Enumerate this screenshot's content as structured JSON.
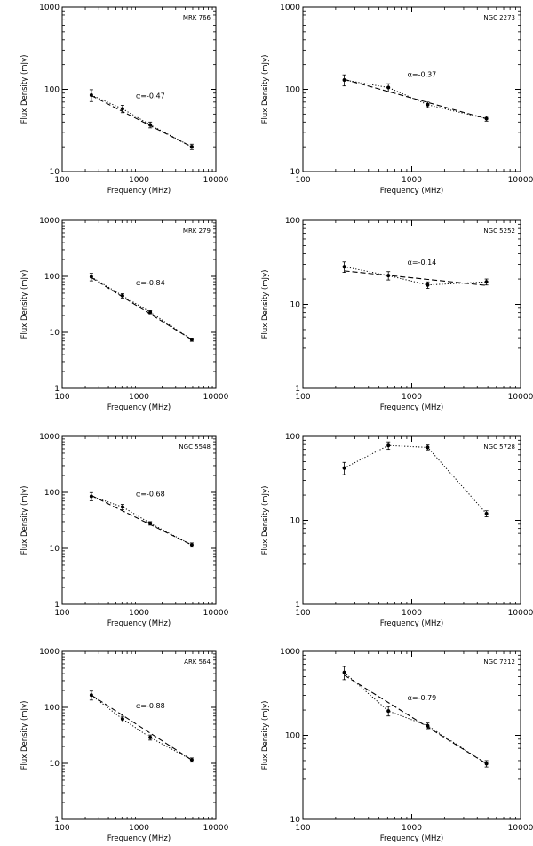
{
  "figure": {
    "x_axis_label": "Frequency (MHz)",
    "y_axis_label": "Flux Density (mJy)"
  },
  "chart_data": [
    {
      "type": "line",
      "object": "MRK 766",
      "alpha_label": "α=-0.47",
      "xlabel": "Frequency (MHz)",
      "ylabel": "Flux Density (mJy)",
      "x_scale": "log",
      "y_scale": "log",
      "xlim": [
        100,
        10000
      ],
      "ylim": [
        10,
        1000
      ],
      "x_ticks": [
        "100",
        "1000",
        "10000"
      ],
      "y_ticks": [
        "10",
        "100",
        "1000"
      ],
      "series": [
        {
          "style": "data-dotted",
          "x": [
            240,
            610,
            1400,
            4860
          ],
          "y": [
            85,
            58,
            37,
            20
          ],
          "err": [
            14,
            6,
            3,
            1.5
          ]
        },
        {
          "style": "fit-dashed",
          "x": [
            240,
            4860
          ],
          "y": [
            84,
            20
          ]
        }
      ]
    },
    {
      "type": "line",
      "object": "NGC 2273",
      "alpha_label": "α=-0.37",
      "xlabel": "Frequency (MHz)",
      "ylabel": "Flux Density (mJy)",
      "x_scale": "log",
      "y_scale": "log",
      "xlim": [
        100,
        10000
      ],
      "ylim": [
        10,
        1000
      ],
      "x_ticks": [
        "100",
        "1000",
        "10000"
      ],
      "y_ticks": [
        "10",
        "100",
        "1000"
      ],
      "series": [
        {
          "style": "data-dotted",
          "x": [
            240,
            610,
            1400,
            4860
          ],
          "y": [
            130,
            105,
            65,
            44
          ],
          "err": [
            20,
            12,
            5,
            3
          ]
        },
        {
          "style": "fit-dashed",
          "x": [
            240,
            4860
          ],
          "y": [
            132,
            44
          ]
        }
      ]
    },
    {
      "type": "line",
      "object": "MRK 279",
      "alpha_label": "α=-0.84",
      "xlabel": "Frequency (MHz)",
      "ylabel": "Flux Density (mJy)",
      "x_scale": "log",
      "y_scale": "log",
      "xlim": [
        100,
        10000
      ],
      "ylim": [
        1,
        1000
      ],
      "x_ticks": [
        "100",
        "1000",
        "10000"
      ],
      "y_ticks": [
        "1",
        "10",
        "100",
        "1000"
      ],
      "series": [
        {
          "style": "data-dotted",
          "x": [
            240,
            610,
            1400,
            4860
          ],
          "y": [
            98,
            45,
            23,
            7.4
          ],
          "err": [
            15,
            4,
            1.5,
            0.5
          ]
        },
        {
          "style": "fit-dashed",
          "x": [
            240,
            4860
          ],
          "y": [
            95,
            7.4
          ]
        }
      ]
    },
    {
      "type": "line",
      "object": "NGC 5252",
      "alpha_label": "α=-0.14",
      "xlabel": "Frequency (MHz)",
      "ylabel": "Flux Density (mJy)",
      "x_scale": "log",
      "y_scale": "log",
      "xlim": [
        100,
        10000
      ],
      "ylim": [
        1,
        100
      ],
      "x_ticks": [
        "100",
        "1000",
        "10000"
      ],
      "y_ticks": [
        "1",
        "10",
        "100"
      ],
      "series": [
        {
          "style": "data-dotted",
          "x": [
            240,
            610,
            1400,
            4860
          ],
          "y": [
            28,
            22,
            17,
            18.5
          ],
          "err": [
            4,
            2.5,
            1.5,
            1.5
          ]
        },
        {
          "style": "fit-dashed",
          "x": [
            240,
            4860
          ],
          "y": [
            25,
            16.8
          ]
        }
      ]
    },
    {
      "type": "line",
      "object": "NGC 5548",
      "alpha_label": "α=-0.68",
      "xlabel": "Frequency (MHz)",
      "ylabel": "Flux Density (mJy)",
      "x_scale": "log",
      "y_scale": "log",
      "xlim": [
        100,
        10000
      ],
      "ylim": [
        1,
        1000
      ],
      "x_ticks": [
        "100",
        "1000",
        "10000"
      ],
      "y_ticks": [
        "1",
        "10",
        "100",
        "1000"
      ],
      "series": [
        {
          "style": "data-dotted",
          "x": [
            240,
            610,
            1400,
            4860
          ],
          "y": [
            85,
            55,
            28,
            11.5
          ],
          "err": [
            14,
            6,
            2,
            1
          ]
        },
        {
          "style": "fit-dashed",
          "x": [
            240,
            4860
          ],
          "y": [
            88,
            11.5
          ]
        }
      ]
    },
    {
      "type": "line",
      "object": "NGC 5728",
      "alpha_label": "",
      "xlabel": "Frequency (MHz)",
      "ylabel": "Flux Density (mJy)",
      "x_scale": "log",
      "y_scale": "log",
      "xlim": [
        100,
        10000
      ],
      "ylim": [
        1,
        100
      ],
      "x_ticks": [
        "100",
        "1000",
        "10000"
      ],
      "y_ticks": [
        "1",
        "10",
        "100"
      ],
      "series": [
        {
          "style": "data-dotted",
          "x": [
            240,
            610,
            1400,
            4860
          ],
          "y": [
            42,
            78,
            74,
            12
          ],
          "err": [
            7,
            8,
            5,
            1
          ]
        }
      ]
    },
    {
      "type": "line",
      "object": "ARK 564",
      "alpha_label": "α=-0.88",
      "xlabel": "Frequency (MHz)",
      "ylabel": "Flux Density (mJy)",
      "x_scale": "log",
      "y_scale": "log",
      "xlim": [
        100,
        10000
      ],
      "ylim": [
        1,
        1000
      ],
      "x_ticks": [
        "100",
        "1000",
        "10000"
      ],
      "y_ticks": [
        "1",
        "10",
        "100",
        "1000"
      ],
      "series": [
        {
          "style": "data-dotted",
          "x": [
            240,
            610,
            1400,
            4860
          ],
          "y": [
            165,
            62,
            29,
            11.5
          ],
          "err": [
            30,
            7,
            3,
            1
          ]
        },
        {
          "style": "fit-dashed",
          "x": [
            240,
            4860
          ],
          "y": [
            165,
            11.5
          ]
        }
      ]
    },
    {
      "type": "line",
      "object": "NGC 7212",
      "alpha_label": "α=-0.79",
      "xlabel": "Frequency (MHz)",
      "ylabel": "Flux Density (mJy)",
      "x_scale": "log",
      "y_scale": "log",
      "xlim": [
        100,
        10000
      ],
      "ylim": [
        10,
        1000
      ],
      "x_ticks": [
        "100",
        "1000",
        "10000"
      ],
      "y_ticks": [
        "10",
        "100",
        "1000"
      ],
      "series": [
        {
          "style": "data-dotted",
          "x": [
            240,
            610,
            1400,
            4860
          ],
          "y": [
            560,
            195,
            130,
            46
          ],
          "err": [
            100,
            25,
            10,
            4
          ]
        },
        {
          "style": "fit-dashed",
          "x": [
            240,
            4860
          ],
          "y": [
            520,
            46
          ]
        }
      ]
    }
  ]
}
